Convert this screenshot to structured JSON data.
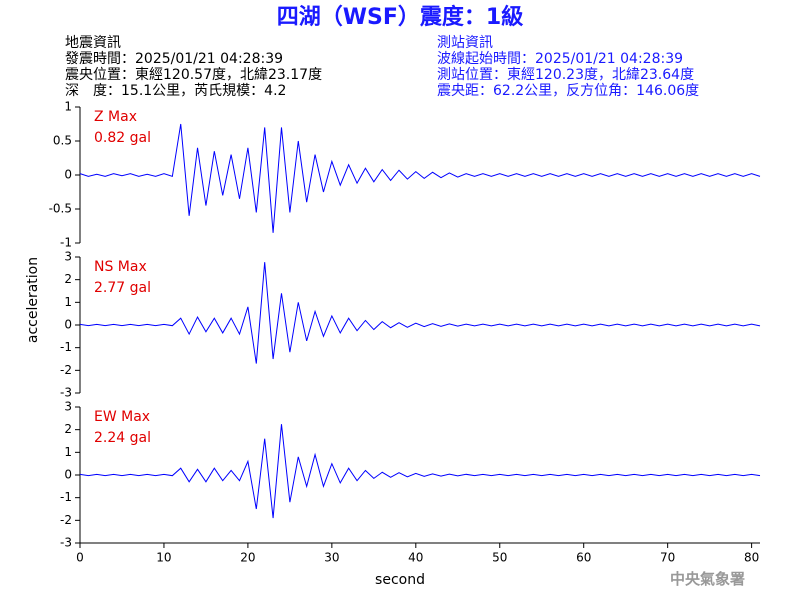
{
  "header": {
    "title": "四湖（WSF）震度：1級",
    "left": [
      "地震資訊",
      "發震時間：2025/01/21 04:28:39",
      "震央位置：東經120.57度，北緯23.17度",
      "深　度：15.1公里，芮氏規模：4.2"
    ],
    "right": [
      "測站資訊",
      "波線起始時間：2025/01/21 04:28:39",
      "測站位置：東經120.23度，北緯23.64度",
      "震央距：62.2公里，反方位角：146.06度"
    ],
    "watermark": "中央氣象署"
  },
  "axis_labels": {
    "x": "second",
    "y": "acceleration"
  },
  "chart_data": [
    {
      "type": "line",
      "max_name": "Z Max",
      "max_label": "0.82 gal",
      "color": "#0000ff",
      "xlim": [
        0,
        81
      ],
      "ylim": [
        -1,
        1
      ],
      "yticks": [
        1,
        0.5,
        0,
        -0.5,
        -1
      ],
      "x": [
        0,
        1,
        2,
        3,
        4,
        5,
        6,
        7,
        8,
        9,
        10,
        11,
        12,
        13,
        14,
        15,
        16,
        17,
        18,
        19,
        20,
        21,
        22,
        23,
        24,
        25,
        26,
        27,
        28,
        29,
        30,
        31,
        32,
        33,
        34,
        35,
        36,
        37,
        38,
        39,
        40,
        41,
        42,
        43,
        44,
        45,
        46,
        47,
        48,
        49,
        50,
        51,
        52,
        53,
        54,
        55,
        56,
        57,
        58,
        59,
        60,
        61,
        62,
        63,
        64,
        65,
        66,
        67,
        68,
        69,
        70,
        71,
        72,
        73,
        74,
        75,
        76,
        77,
        78,
        79,
        80,
        81
      ],
      "values": [
        0.02,
        -0.02,
        0.01,
        -0.02,
        0.02,
        -0.01,
        0.02,
        -0.02,
        0.01,
        -0.02,
        0.02,
        -0.02,
        0.75,
        -0.6,
        0.4,
        -0.45,
        0.35,
        -0.3,
        0.3,
        -0.35,
        0.4,
        -0.55,
        0.7,
        -0.85,
        0.7,
        -0.55,
        0.5,
        -0.4,
        0.3,
        -0.25,
        0.2,
        -0.15,
        0.15,
        -0.12,
        0.1,
        -0.1,
        0.08,
        -0.08,
        0.07,
        -0.06,
        0.05,
        -0.05,
        0.04,
        -0.04,
        0.03,
        -0.03,
        0.02,
        -0.02,
        0.02,
        -0.02,
        0.02,
        -0.02,
        0.02,
        -0.02,
        0.02,
        -0.02,
        0.02,
        -0.02,
        0.02,
        -0.02,
        0.02,
        -0.02,
        0.02,
        -0.02,
        0.02,
        -0.02,
        0.02,
        -0.02,
        0.02,
        -0.02,
        0.02,
        -0.02,
        0.02,
        -0.02,
        0.02,
        -0.02,
        0.02,
        -0.02,
        0.02,
        -0.02,
        0.02,
        -0.02
      ]
    },
    {
      "type": "line",
      "max_name": "NS Max",
      "max_label": "2.77 gal",
      "color": "#0000ff",
      "xlim": [
        0,
        81
      ],
      "ylim": [
        -3,
        3
      ],
      "yticks": [
        3,
        2,
        1,
        0,
        -1,
        -2,
        -3
      ],
      "x": [
        0,
        1,
        2,
        3,
        4,
        5,
        6,
        7,
        8,
        9,
        10,
        11,
        12,
        13,
        14,
        15,
        16,
        17,
        18,
        19,
        20,
        21,
        22,
        23,
        24,
        25,
        26,
        27,
        28,
        29,
        30,
        31,
        32,
        33,
        34,
        35,
        36,
        37,
        38,
        39,
        40,
        41,
        42,
        43,
        44,
        45,
        46,
        47,
        48,
        49,
        50,
        51,
        52,
        53,
        54,
        55,
        56,
        57,
        58,
        59,
        60,
        61,
        62,
        63,
        64,
        65,
        66,
        67,
        68,
        69,
        70,
        71,
        72,
        73,
        74,
        75,
        76,
        77,
        78,
        79,
        80,
        81
      ],
      "values": [
        0.03,
        -0.03,
        0.03,
        -0.03,
        0.03,
        -0.03,
        0.03,
        -0.03,
        0.03,
        -0.03,
        0.03,
        -0.03,
        0.3,
        -0.4,
        0.35,
        -0.3,
        0.3,
        -0.35,
        0.3,
        -0.4,
        0.8,
        -1.7,
        2.77,
        -1.5,
        1.4,
        -1.2,
        1.0,
        -0.7,
        0.6,
        -0.5,
        0.4,
        -0.35,
        0.3,
        -0.25,
        0.2,
        -0.2,
        0.15,
        -0.12,
        0.1,
        -0.1,
        0.08,
        -0.07,
        0.06,
        -0.06,
        0.05,
        -0.05,
        0.04,
        -0.04,
        0.04,
        -0.04,
        0.04,
        -0.04,
        0.04,
        -0.04,
        0.04,
        -0.04,
        0.04,
        -0.04,
        0.04,
        -0.04,
        0.04,
        -0.04,
        0.04,
        -0.04,
        0.04,
        -0.04,
        0.04,
        -0.04,
        0.04,
        -0.04,
        0.04,
        -0.04,
        0.04,
        -0.04,
        0.04,
        -0.04,
        0.04,
        -0.04,
        0.04,
        -0.04,
        0.04,
        -0.04
      ]
    },
    {
      "type": "line",
      "max_name": "EW Max",
      "max_label": "2.24 gal",
      "color": "#0000ff",
      "xlim": [
        0,
        81
      ],
      "ylim": [
        -3,
        3
      ],
      "yticks": [
        3,
        2,
        1,
        0,
        -1,
        -2,
        -3
      ],
      "xticks": [
        0,
        10,
        20,
        30,
        40,
        50,
        60,
        70,
        80
      ],
      "x": [
        0,
        1,
        2,
        3,
        4,
        5,
        6,
        7,
        8,
        9,
        10,
        11,
        12,
        13,
        14,
        15,
        16,
        17,
        18,
        19,
        20,
        21,
        22,
        23,
        24,
        25,
        26,
        27,
        28,
        29,
        30,
        31,
        32,
        33,
        34,
        35,
        36,
        37,
        38,
        39,
        40,
        41,
        42,
        43,
        44,
        45,
        46,
        47,
        48,
        49,
        50,
        51,
        52,
        53,
        54,
        55,
        56,
        57,
        58,
        59,
        60,
        61,
        62,
        63,
        64,
        65,
        66,
        67,
        68,
        69,
        70,
        71,
        72,
        73,
        74,
        75,
        76,
        77,
        78,
        79,
        80,
        81
      ],
      "values": [
        0.03,
        -0.03,
        0.03,
        -0.03,
        0.03,
        -0.03,
        0.03,
        -0.03,
        0.03,
        -0.03,
        0.03,
        -0.03,
        0.3,
        -0.3,
        0.25,
        -0.3,
        0.3,
        -0.25,
        0.2,
        -0.25,
        0.6,
        -1.5,
        1.6,
        -1.9,
        2.24,
        -1.2,
        0.8,
        -0.5,
        0.9,
        -0.5,
        0.5,
        -0.35,
        0.3,
        -0.25,
        0.2,
        -0.15,
        0.12,
        -0.1,
        0.1,
        -0.08,
        0.07,
        -0.06,
        0.05,
        -0.05,
        0.04,
        -0.04,
        0.03,
        -0.03,
        0.03,
        -0.03,
        0.03,
        -0.03,
        0.03,
        -0.03,
        0.03,
        -0.03,
        0.03,
        -0.03,
        0.03,
        -0.03,
        0.03,
        -0.03,
        0.03,
        -0.03,
        0.03,
        -0.03,
        0.03,
        -0.03,
        0.03,
        -0.03,
        0.03,
        -0.03,
        0.03,
        -0.03,
        0.03,
        -0.03,
        0.03,
        -0.03,
        0.03,
        -0.03,
        0.03,
        -0.03
      ]
    }
  ]
}
